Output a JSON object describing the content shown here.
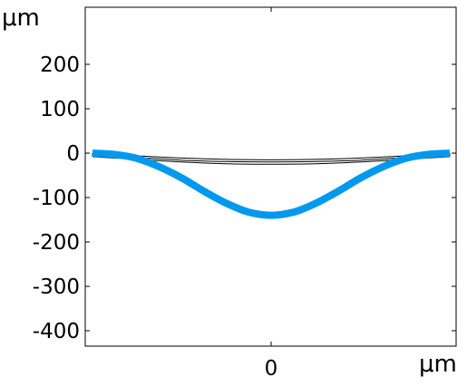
{
  "chart_data": {
    "type": "line",
    "title": "",
    "ylabel": "μm",
    "xlabel": "μm",
    "ylim": [
      -440,
      330
    ],
    "xlim": [
      -400,
      400
    ],
    "y_ticks": [
      200,
      100,
      0,
      -100,
      -200,
      -300,
      -400
    ],
    "y_tick_labels": [
      "200",
      "100",
      "0",
      "-100",
      "-200",
      "-300",
      "-400"
    ],
    "x_ticks": [
      0
    ],
    "x_tick_labels": [
      "0"
    ],
    "grid": false,
    "series": [
      {
        "style": "outline",
        "color": "#000000",
        "x": [
          -400,
          -300,
          -200,
          -100,
          0,
          100,
          200,
          300,
          400
        ],
        "top": [
          0,
          -6,
          -11,
          -14,
          -15,
          -14,
          -11,
          -6,
          0
        ],
        "bottom": [
          -8,
          -14,
          -20,
          -24,
          -25,
          -24,
          -20,
          -14,
          -8
        ],
        "mid": [
          -4,
          -10,
          -16,
          -19,
          -20,
          -19,
          -16,
          -10,
          -4
        ]
      },
      {
        "style": "thick",
        "color": "#0099ee",
        "x": [
          -400,
          -350,
          -300,
          -250,
          -200,
          -150,
          -100,
          -50,
          0,
          50,
          100,
          150,
          200,
          250,
          300,
          350,
          400
        ],
        "y": [
          0,
          -3,
          -12,
          -31,
          -56,
          -86,
          -113,
          -133,
          -140,
          -133,
          -113,
          -86,
          -56,
          -31,
          -12,
          -3,
          0
        ]
      }
    ]
  }
}
